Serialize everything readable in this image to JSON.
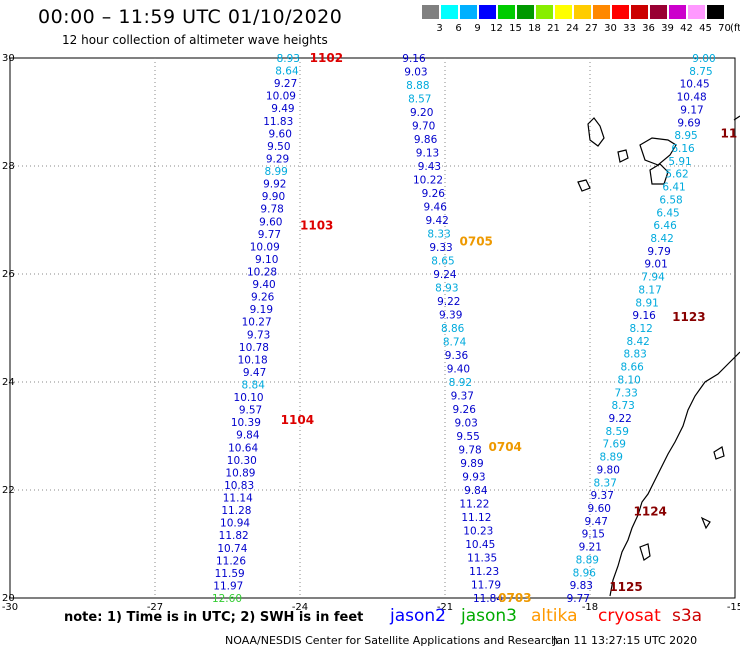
{
  "header": {
    "title": "00:00 – 11:59 UTC 01/10/2020",
    "subtitle": "12 hour collection of altimeter wave heights"
  },
  "color_scale": {
    "labels": [
      "3",
      "6",
      "9",
      "12",
      "15",
      "18",
      "21",
      "24",
      "27",
      "30",
      "33",
      "36",
      "39",
      "42",
      "45",
      "70"
    ],
    "unit": "(ft)",
    "colors": [
      "#808080",
      "#00ffff",
      "#00b0ff",
      "#0000ff",
      "#00cc00",
      "#009900",
      "#88ee00",
      "#ffff00",
      "#ffcc00",
      "#ff8800",
      "#ff0000",
      "#cc0000",
      "#990033",
      "#cc00cc",
      "#ff99ff",
      "#000000"
    ]
  },
  "axes": {
    "lon_labels": [
      "-30",
      "-27",
      "-24",
      "-21",
      "-18",
      "-15"
    ],
    "lat_labels": [
      "30",
      "28",
      "26",
      "24",
      "22",
      "20"
    ]
  },
  "tracks": [
    {
      "id": "1102",
      "color": "#dd0000",
      "lat": 30.0
    },
    {
      "id": "1103",
      "color": "#dd0000",
      "lat": 26.9
    },
    {
      "id": "1104",
      "color": "#dd0000",
      "lat": 23.3
    },
    {
      "id": "0705",
      "color": "#ee9900",
      "lat": 26.6
    },
    {
      "id": "0704",
      "color": "#ee9900",
      "lat": 22.8
    },
    {
      "id": "0703",
      "color": "#ee9900",
      "lat": 20.0
    },
    {
      "id": "1123",
      "color": "#880000",
      "lat": 25.2
    },
    {
      "id": "1124",
      "color": "#880000",
      "lat": 21.6
    },
    {
      "id": "1125",
      "color": "#880000",
      "lat": 20.2
    },
    {
      "id": "11",
      "color": "#880000",
      "lat": 28.6
    }
  ],
  "observations": {
    "track_1102_1104": {
      "lon_start": -24.0,
      "lon_end": -25.2,
      "values": [
        "8.93",
        "8.64",
        "9.27",
        "10.09",
        "9.49",
        "11.83",
        "9.60",
        "9.50",
        "9.29",
        "8.99",
        "9.92",
        "9.90",
        "9.78",
        "9.60",
        "9.77",
        "10.09",
        "9.10",
        "10.28",
        "9.40",
        "9.26",
        "9.19",
        "10.27",
        "9.73",
        "10.78",
        "10.18",
        "9.47",
        "8.84",
        "10.10",
        "9.57",
        "10.39",
        "9.84",
        "10.64",
        "10.30",
        "10.89",
        "10.83",
        "11.14",
        "11.28",
        "10.94",
        "11.82",
        "10.74",
        "11.26",
        "11.59",
        "11.97",
        "12.60"
      ],
      "colors": [
        "c",
        "c",
        "b",
        "b",
        "b",
        "b",
        "b",
        "b",
        "b",
        "c",
        "b",
        "b",
        "b",
        "b",
        "b",
        "b",
        "b",
        "b",
        "b",
        "b",
        "b",
        "b",
        "b",
        "b",
        "b",
        "b",
        "c",
        "b",
        "b",
        "b",
        "b",
        "b",
        "b",
        "b",
        "b",
        "b",
        "b",
        "b",
        "b",
        "b",
        "b",
        "b",
        "b",
        "g"
      ]
    },
    "track_0703_0705": {
      "lon_start": -21.4,
      "lon_end": -19.8,
      "values": [
        "9.16",
        "9.03",
        "8.88",
        "8.57",
        "9.20",
        "9.70",
        "9.86",
        "9.13",
        "9.43",
        "10.22",
        "9.26",
        "9.46",
        "9.42",
        "8.33",
        "9.33",
        "8.65",
        "9.24",
        "8.93",
        "9.22",
        "9.39",
        "8.86",
        "8.74",
        "9.36",
        "9.40",
        "8.92",
        "9.37",
        "9.26",
        "9.03",
        "9.55",
        "9.78",
        "9.89",
        "9.93",
        "9.84",
        "11.22",
        "11.12",
        "10.23",
        "10.45",
        "11.35",
        "11.23",
        "11.79",
        "11.84"
      ],
      "colors": [
        "b",
        "b",
        "c",
        "c",
        "b",
        "b",
        "b",
        "b",
        "b",
        "b",
        "b",
        "b",
        "b",
        "c",
        "b",
        "c",
        "b",
        "c",
        "b",
        "b",
        "c",
        "c",
        "b",
        "b",
        "c",
        "b",
        "b",
        "b",
        "b",
        "b",
        "b",
        "b",
        "b",
        "b",
        "b",
        "b",
        "b",
        "b",
        "b",
        "b",
        "b"
      ]
    },
    "track_1123_1125": {
      "lon_start": -15.4,
      "lon_end": -18.0,
      "values": [
        "9.00",
        "8.75",
        "10.45",
        "10.48",
        "9.17",
        "9.69",
        "8.95",
        "6.16",
        "5.91",
        "5.62",
        "6.41",
        "6.58",
        "6.45",
        "6.46",
        "8.42",
        "9.79",
        "9.01",
        "7.94",
        "8.17",
        "8.91",
        "9.16",
        "8.12",
        "8.42",
        "8.83",
        "8.66",
        "8.10",
        "7.33",
        "8.73",
        "9.22",
        "8.59",
        "7.69",
        "8.89",
        "9.80",
        "8.37",
        "9.37",
        "9.60",
        "9.47",
        "9.15",
        "9.21",
        "8.89",
        "8.96",
        "9.83",
        "9.77"
      ],
      "colors": [
        "c",
        "c",
        "b",
        "b",
        "b",
        "b",
        "c",
        "c",
        "c",
        "c",
        "c",
        "c",
        "c",
        "c",
        "c",
        "b",
        "b",
        "c",
        "c",
        "c",
        "b",
        "c",
        "c",
        "c",
        "c",
        "c",
        "c",
        "c",
        "b",
        "c",
        "c",
        "c",
        "b",
        "c",
        "b",
        "b",
        "b",
        "b",
        "b",
        "c",
        "c",
        "b",
        "b"
      ]
    }
  },
  "palette": {
    "b": "#0000cc",
    "c": "#00aadd",
    "g": "#33cc33"
  },
  "footer": {
    "note": "note: 1) Time is in UTC; 2) SWH is in feet",
    "legend": [
      {
        "name": "jason2",
        "color": "#0000ff"
      },
      {
        "name": "jason3",
        "color": "#00aa00"
      },
      {
        "name": "altika",
        "color": "#ff9900"
      },
      {
        "name": "cryosat",
        "color": "#ff0000"
      },
      {
        "name": "s3a",
        "color": "#cc0000"
      }
    ],
    "credit": "NOAA/NESDIS Center for Satellite Applications and Research",
    "timestamp": "Jan 11 13:27:15 UTC 2020"
  }
}
